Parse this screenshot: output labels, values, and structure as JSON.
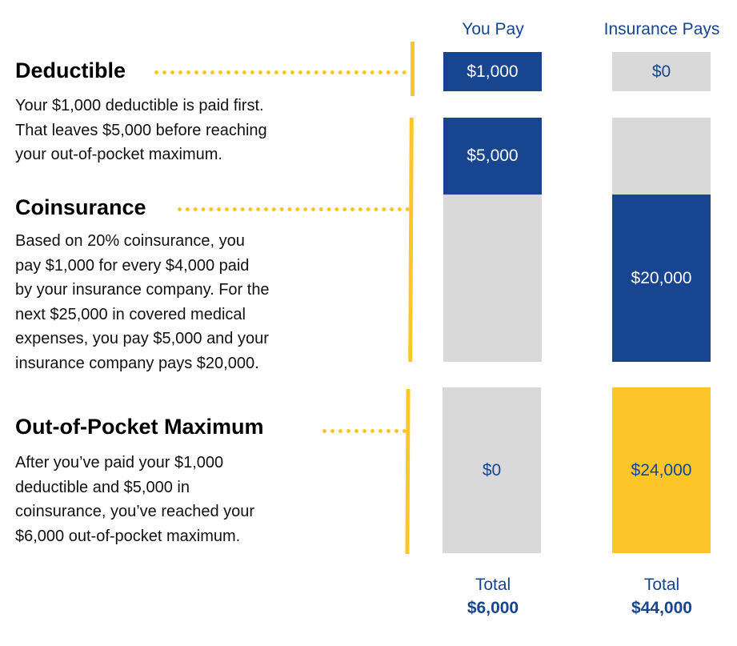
{
  "columns": {
    "you_pay": "You Pay",
    "insurance_pays": "Insurance Pays"
  },
  "colors": {
    "blue": "#17458F",
    "gray": "#D9D9D9",
    "yellow": "#FFC629"
  },
  "sections": [
    {
      "title": "Deductible",
      "text": "Your $1,000 deductible is paid first.\nThat leaves $5,000 before reaching\nyour out-of-pocket maximum.",
      "you_pay": "$1,000",
      "insurance_pays": "$0"
    },
    {
      "title": "Coinsurance",
      "text": "Based on 20% coinsurance, you\npay $1,000 for every $4,000 paid\nby your insurance company. For the\nnext $25,000 in covered medical\nexpenses, you pay $5,000 and your\ninsurance company pays $20,000.",
      "you_pay": "$5,000",
      "insurance_pays": "$20,000"
    },
    {
      "title": "Out-of-Pocket Maximum",
      "text": "After you’ve paid your $1,000\ndeductible and $5,000 in\ncoinsurance, you’ve reached your\n$6,000 out-of-pocket maximum.",
      "you_pay": "$0",
      "insurance_pays": "$24,000"
    }
  ],
  "totals": {
    "label": "Total",
    "you_pay": "$6,000",
    "insurance_pays": "$44,000"
  }
}
